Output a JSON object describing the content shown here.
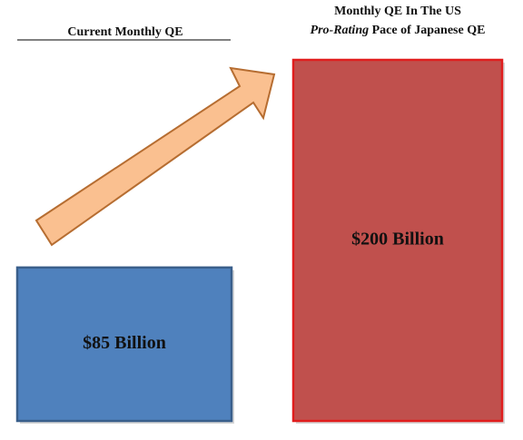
{
  "chart_data": {
    "type": "bar",
    "categories": [
      "Current Monthly QE",
      "Monthly QE In The US"
    ],
    "category_notes": [
      null,
      [
        "Pro-Rating",
        "Pace of Japanese QE"
      ]
    ],
    "values": [
      85,
      200
    ],
    "value_labels": [
      "$85 Billion",
      "$200 Billion"
    ],
    "colors": [
      "#4f81bd",
      "#c0504d"
    ],
    "border_colors": [
      "#3a5f8b",
      "#e01e1e"
    ]
  }
}
